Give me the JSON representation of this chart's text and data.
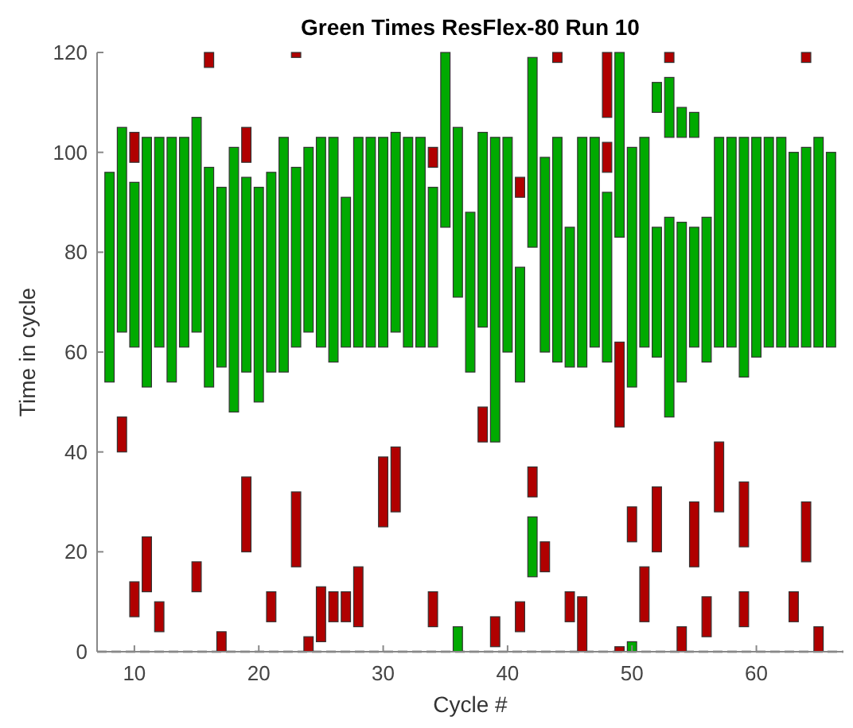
{
  "chart_data": {
    "type": "bar",
    "title": "Green Times ResFlex-80 Run 10",
    "xlabel": "Cycle #",
    "ylabel": "Time in cycle",
    "xlim": [
      7,
      67
    ],
    "xticks": [
      10,
      20,
      30,
      40,
      50,
      60
    ],
    "ylim": [
      0,
      120
    ],
    "yticks": [
      0,
      20,
      40,
      60,
      80,
      100,
      120
    ],
    "grid": false,
    "ref_lines": [
      {
        "axis": "y",
        "value": 0,
        "color": "#999999",
        "line_style": "dashed"
      }
    ],
    "series": [
      {
        "color": "#00aa00",
        "x": [
          8,
          9,
          10,
          11,
          12,
          13,
          14,
          15,
          16,
          17,
          18,
          19,
          20,
          21,
          22,
          23,
          24,
          25,
          26,
          27,
          28,
          29,
          30,
          31,
          32,
          33,
          34,
          35,
          36,
          37,
          38,
          39,
          40,
          41,
          42,
          43,
          44,
          45,
          46,
          47,
          48,
          49,
          50,
          51,
          52,
          53,
          54,
          55,
          56,
          57,
          58,
          59,
          60,
          61,
          62,
          63,
          64,
          65,
          66
        ],
        "base": [
          54,
          64,
          61,
          53,
          61,
          54,
          61,
          64,
          53,
          57,
          48,
          56,
          50,
          56,
          56,
          61,
          64,
          61,
          58,
          61,
          61,
          61,
          61,
          64,
          61,
          61,
          61,
          85,
          71,
          56,
          65,
          42,
          60,
          54,
          81,
          60,
          58,
          57,
          57,
          61,
          58,
          83,
          53,
          61,
          59,
          47,
          54,
          61,
          58,
          61,
          61,
          55,
          59,
          61,
          61,
          61,
          61,
          61,
          61
        ],
        "values": [
          42,
          41,
          33,
          50,
          42,
          49,
          42,
          43,
          44,
          36,
          53,
          39,
          43,
          40,
          47,
          36,
          37,
          42,
          45,
          30,
          42,
          42,
          42,
          40,
          42,
          42,
          32,
          35,
          34,
          32,
          39,
          61,
          43,
          23,
          38,
          39,
          45,
          28,
          46,
          42,
          34,
          37,
          48,
          42,
          26,
          40,
          32,
          24,
          29,
          42,
          42,
          48,
          44,
          42,
          42,
          39,
          40,
          42,
          39
        ]
      },
      {
        "color": "#00aa00",
        "x": [
          36,
          42,
          50,
          52,
          53,
          54,
          55
        ],
        "base": [
          0,
          15,
          0,
          108,
          103,
          103,
          103
        ],
        "values": [
          5,
          12,
          2,
          6,
          12,
          6,
          5
        ]
      },
      {
        "color": "#b00000",
        "x": [
          9,
          10,
          11,
          12,
          15,
          16,
          17,
          19,
          21,
          23,
          24,
          25,
          26,
          27,
          28,
          30,
          31,
          34,
          38,
          39,
          41,
          42,
          43,
          44,
          45,
          46,
          48,
          49,
          50,
          51,
          52,
          53,
          54,
          55,
          56,
          57,
          59,
          63,
          64,
          65
        ],
        "base": [
          40,
          98,
          12,
          4,
          12,
          117,
          0,
          98,
          6,
          119,
          0,
          2,
          6,
          6,
          5,
          25,
          28,
          97,
          42,
          1,
          91,
          31,
          16,
          118,
          6,
          0,
          107,
          45,
          22,
          6,
          20,
          118,
          0,
          17,
          3,
          28,
          21,
          6,
          118,
          0
        ],
        "values": [
          7,
          6,
          11,
          6,
          6,
          3,
          4,
          7,
          6,
          1,
          3,
          11,
          6,
          6,
          12,
          14,
          13,
          4,
          7,
          6,
          4,
          6,
          6,
          2,
          6,
          11,
          13,
          17,
          7,
          11,
          13,
          2,
          5,
          13,
          8,
          14,
          13,
          6,
          2,
          5
        ]
      },
      {
        "color": "#b00000",
        "x": [
          10,
          19,
          23,
          34,
          41,
          48,
          49,
          59,
          64
        ],
        "base": [
          7,
          20,
          17,
          5,
          4,
          96,
          0,
          5,
          18
        ],
        "values": [
          7,
          15,
          15,
          7,
          6,
          6,
          1,
          7,
          12
        ]
      }
    ]
  }
}
